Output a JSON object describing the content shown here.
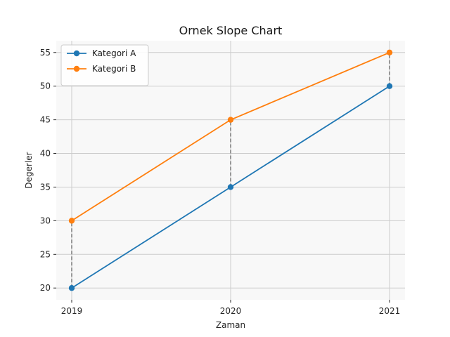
{
  "chart_data": {
    "type": "line",
    "title": "Ornek Slope Chart",
    "xlabel": "Zaman",
    "ylabel": "Degerler",
    "categories": [
      "2019",
      "2020",
      "2021"
    ],
    "ylim": [
      18.25,
      56.75
    ],
    "yticks": [
      20,
      25,
      30,
      35,
      40,
      45,
      50,
      55
    ],
    "grid": true,
    "legend_position": "top-left",
    "series": [
      {
        "name": "Kategori A",
        "values": [
          20,
          35,
          50
        ],
        "color": "#1f77b4"
      },
      {
        "name": "Kategori B",
        "values": [
          30,
          45,
          55
        ],
        "color": "#ff7f0e"
      }
    ],
    "connector_style": "dashed",
    "connector_color": "#808080",
    "plot_background": "#f8f8f8",
    "grid_color": "#cccccc"
  }
}
